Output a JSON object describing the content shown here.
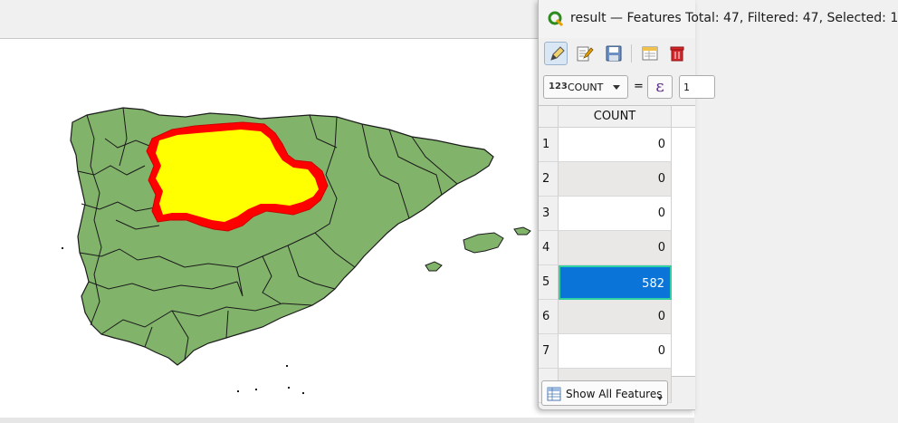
{
  "window": {
    "title": "result — Features Total: 47, Filtered: 47, Selected: 1"
  },
  "toolbar": {
    "icons": [
      "pencil-icon",
      "edit-multi-icon",
      "save-icon",
      "reload-icon",
      "delete-icon"
    ]
  },
  "filter_bar": {
    "field_type_badge": "123",
    "field_name": "COUNT",
    "operator": "=",
    "expression_symbol": "ε",
    "value_partial": "1"
  },
  "table": {
    "column_header": "COUNT",
    "rows": [
      {
        "num": "1",
        "value": "0",
        "selected": false
      },
      {
        "num": "2",
        "value": "0",
        "selected": false
      },
      {
        "num": "3",
        "value": "0",
        "selected": false
      },
      {
        "num": "4",
        "value": "0",
        "selected": false
      },
      {
        "num": "5",
        "value": "582",
        "selected": true
      },
      {
        "num": "6",
        "value": "0",
        "selected": false
      },
      {
        "num": "7",
        "value": "0",
        "selected": false
      }
    ]
  },
  "footer": {
    "show_all_label": "Show All Features"
  },
  "colors": {
    "map_fill": "#82b36b",
    "map_stroke": "#1a1a1a",
    "selected_region_fill": "#ffff00",
    "selected_region_outline": "#ff0000",
    "selection_blue": "#0a74d8",
    "selection_border": "#2fd0a4"
  }
}
